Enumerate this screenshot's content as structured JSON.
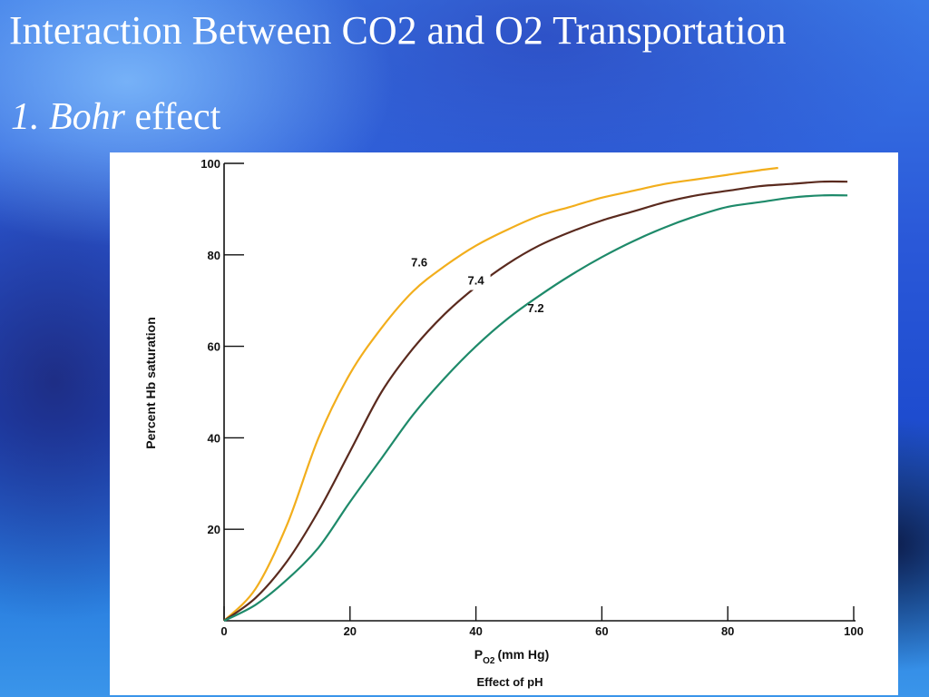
{
  "slide": {
    "title": "Interaction Between CO2 and O2 Transportation",
    "subtitle_number": "1.",
    "subtitle_italic": "Bohr",
    "subtitle_rest": "effect"
  },
  "colors": {
    "ph_7_6": "#f2ae1c",
    "ph_7_4": "#5a2a1e",
    "ph_7_2": "#1e8a6a",
    "axis": "#111111"
  },
  "chart_data": {
    "type": "line",
    "title": "",
    "caption": "Effect of pH",
    "xlabel_main": "P",
    "xlabel_sub": "O2",
    "xlabel_rest": "(mm Hg)",
    "ylabel": "Percent Hb saturation",
    "xlim": [
      0,
      100
    ],
    "ylim": [
      0,
      100
    ],
    "xticks": [
      0,
      20,
      40,
      60,
      80,
      100
    ],
    "yticks": [
      20,
      40,
      60,
      80,
      100
    ],
    "grid": false,
    "series": [
      {
        "name": "7.6",
        "x": [
          0,
          5,
          10,
          15,
          20,
          25,
          30,
          35,
          40,
          45,
          50,
          55,
          60,
          65,
          70,
          75,
          80,
          85,
          88
        ],
        "y": [
          0,
          7,
          21,
          40,
          54,
          64,
          72,
          77.5,
          82,
          85.5,
          88.5,
          90.5,
          92.5,
          94,
          95.5,
          96.5,
          97.5,
          98.5,
          99
        ]
      },
      {
        "name": "7.4",
        "x": [
          0,
          5,
          10,
          15,
          20,
          25,
          30,
          35,
          40,
          45,
          50,
          55,
          60,
          65,
          70,
          75,
          80,
          85,
          90,
          95,
          99
        ],
        "y": [
          0,
          5,
          13,
          24,
          37,
          50,
          59.5,
          67,
          73,
          78,
          82,
          85,
          87.5,
          89.5,
          91.5,
          93,
          94,
          95,
          95.5,
          96,
          96
        ]
      },
      {
        "name": "7.2",
        "x": [
          0,
          5,
          10,
          15,
          20,
          25,
          30,
          35,
          40,
          45,
          50,
          55,
          60,
          65,
          70,
          75,
          80,
          85,
          90,
          95,
          99
        ],
        "y": [
          0,
          3.5,
          9,
          16,
          26,
          35.5,
          45,
          53,
          60,
          66,
          71,
          75.5,
          79.5,
          83,
          86,
          88.5,
          90.5,
          91.5,
          92.5,
          93,
          93
        ]
      }
    ],
    "curve_labels": [
      {
        "text": "7.6",
        "x": 31,
        "y": 77.5
      },
      {
        "text": "7.4",
        "x": 40,
        "y": 73.5
      },
      {
        "text": "7.2",
        "x": 49.5,
        "y": 67.5
      }
    ]
  }
}
